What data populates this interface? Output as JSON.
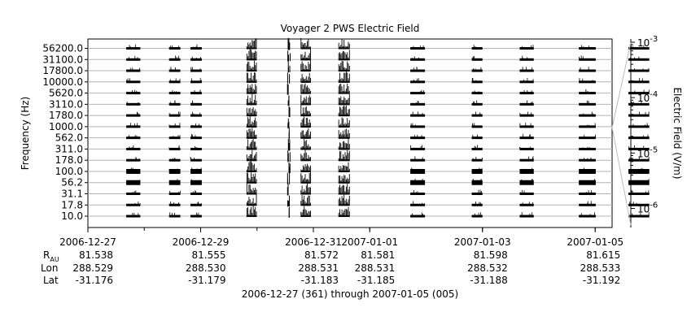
{
  "chart_data": {
    "type": "heatmap",
    "title": "Voyager 2 PWS Electric Field",
    "ylabel": "Frequency (Hz)",
    "colorbar_label": "Electric Field (V/m)",
    "colorbar_ticks": [
      {
        "base": "10",
        "exp": "-3"
      },
      {
        "base": "10",
        "exp": "-4"
      },
      {
        "base": "10",
        "exp": "-5"
      },
      {
        "base": "10",
        "exp": "-6"
      }
    ],
    "colorbar_range": [
      5e-07,
      0.001
    ],
    "channels": [
      "56200.0",
      "31100.0",
      "17800.0",
      "10000.0",
      "5620.0",
      "3110.0",
      "1780.0",
      "1000.0",
      "562.0",
      "311.0",
      "178.0",
      "100.0",
      "56.2",
      "31.1",
      "17.8",
      "10.0"
    ],
    "x_range_days": [
      0,
      9.3
    ],
    "x_ticks": [
      {
        "day": 0,
        "label": "2006-12-27"
      },
      {
        "day": 2,
        "label": "2006-12-29"
      },
      {
        "day": 4,
        "label": "2006-12-31"
      },
      {
        "day": 5,
        "label": "2007-01-01"
      },
      {
        "day": 7,
        "label": "2007-01-03"
      },
      {
        "day": 9,
        "label": "2007-01-05"
      }
    ],
    "ephemeris": {
      "row_labels": {
        "r_main": "R",
        "r_sub": "AU",
        "lon": "Lon",
        "lat": "Lat"
      },
      "columns": [
        {
          "day": 0,
          "r": "81.538",
          "lon": "288.529",
          "lat": "-31.176"
        },
        {
          "day": 2,
          "r": "81.555",
          "lon": "288.530",
          "lat": "-31.179"
        },
        {
          "day": 4,
          "r": "81.572",
          "lon": "288.531",
          "lat": "-31.183"
        },
        {
          "day": 5,
          "r": "81.581",
          "lon": "288.531",
          "lat": "-31.185"
        },
        {
          "day": 7,
          "r": "81.598",
          "lon": "288.532",
          "lat": "-31.188"
        },
        {
          "day": 9,
          "r": "81.615",
          "lon": "288.533",
          "lat": "-31.192"
        }
      ]
    },
    "date_range_text": "2006-12-27 (361) through 2007-01-05 (005)",
    "observation_segments": [
      {
        "start": 0.68,
        "end": 0.93,
        "style": "regular"
      },
      {
        "start": 1.44,
        "end": 1.64,
        "style": "regular"
      },
      {
        "start": 1.82,
        "end": 2.02,
        "style": "regular"
      },
      {
        "start": 2.82,
        "end": 2.99,
        "style": "burst"
      },
      {
        "start": 3.54,
        "end": 3.59,
        "style": "sparse"
      },
      {
        "start": 3.78,
        "end": 3.95,
        "style": "burst"
      },
      {
        "start": 4.45,
        "end": 4.64,
        "style": "burst"
      },
      {
        "start": 5.72,
        "end": 5.98,
        "style": "regular"
      },
      {
        "start": 6.81,
        "end": 7.0,
        "style": "regular"
      },
      {
        "start": 7.66,
        "end": 7.91,
        "style": "regular"
      },
      {
        "start": 8.71,
        "end": 9.01,
        "style": "regular"
      },
      {
        "start": 9.59,
        "end": 9.96,
        "style": "regular"
      }
    ]
  }
}
